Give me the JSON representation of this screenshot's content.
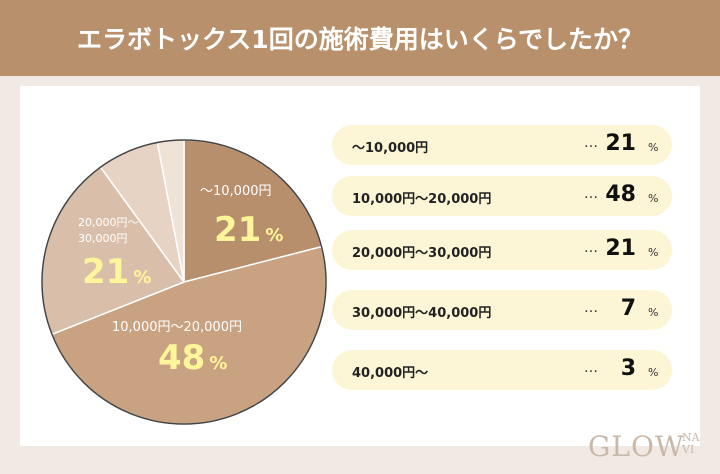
{
  "chart_data": {
    "type": "pie",
    "title": "エラボトックス1回の施術費用はいくらでしたか？",
    "categories": [
      "〜10,000円",
      "10,000円〜20,000円",
      "20,000円〜30,000円",
      "30,000円〜40,000円",
      "40,000円〜"
    ],
    "values": [
      21,
      48,
      21,
      7,
      3
    ],
    "unit": "%",
    "colors": [
      "#b88f6c",
      "#c9a281",
      "#d9bfa9",
      "#e6d3c3",
      "#efe3d8"
    ],
    "legend_marker": "…",
    "logo": "GLOW",
    "logo_sub": "NAVI"
  }
}
